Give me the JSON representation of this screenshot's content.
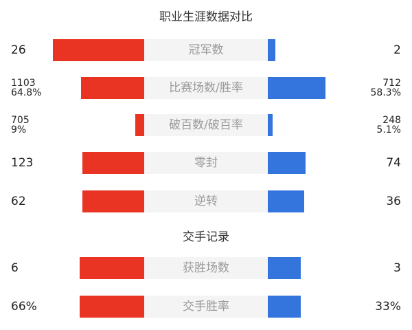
{
  "colors": {
    "left": "#e93323",
    "right": "#3474dd"
  },
  "sections": [
    {
      "title": "职业生涯数据对比",
      "rows": [
        {
          "label": "冠军数",
          "left": [
            "26"
          ],
          "right": [
            "2"
          ],
          "left_fill": 1.0,
          "right_fill": 0.08
        },
        {
          "label": "比赛场数/胜率",
          "left": [
            "1103",
            "64.8%"
          ],
          "right": [
            "712",
            "58.3%"
          ],
          "left_fill": 0.69,
          "right_fill": 0.63
        },
        {
          "label": "破百数/破百率",
          "left": [
            "705",
            "9%"
          ],
          "right": [
            "248",
            "5.1%"
          ],
          "left_fill": 0.1,
          "right_fill": 0.05
        },
        {
          "label": "零封",
          "left": [
            "123"
          ],
          "right": [
            "74"
          ],
          "left_fill": 0.68,
          "right_fill": 0.41
        },
        {
          "label": "逆转",
          "left": [
            "62"
          ],
          "right": [
            "36"
          ],
          "left_fill": 0.68,
          "right_fill": 0.4
        }
      ]
    },
    {
      "title": "交手记录",
      "rows": [
        {
          "label": "获胜场数",
          "left": [
            "6"
          ],
          "right": [
            "3"
          ],
          "left_fill": 0.71,
          "right_fill": 0.36
        },
        {
          "label": "交手胜率",
          "left": [
            "66%"
          ],
          "right": [
            "33%"
          ],
          "left_fill": 0.71,
          "right_fill": 0.36
        }
      ]
    }
  ]
}
